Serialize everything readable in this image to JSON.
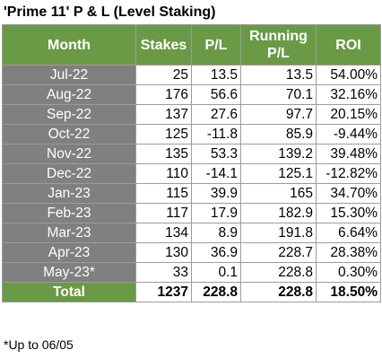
{
  "title": "'Prime 11' P & L (Level Staking)",
  "headers": {
    "month": "Month",
    "stakes": "Stakes",
    "pl": "P/L",
    "running_line1": "Running",
    "running_line2": "P/L",
    "roi": "ROI"
  },
  "rows": [
    {
      "month": "Jul-22",
      "stakes": "25",
      "pl": "13.5",
      "running": "13.5",
      "roi": "54.00%"
    },
    {
      "month": "Aug-22",
      "stakes": "176",
      "pl": "56.6",
      "running": "70.1",
      "roi": "32.16%"
    },
    {
      "month": "Sep-22",
      "stakes": "137",
      "pl": "27.6",
      "running": "97.7",
      "roi": "20.15%"
    },
    {
      "month": "Oct-22",
      "stakes": "125",
      "pl": "-11.8",
      "running": "85.9",
      "roi": "-9.44%"
    },
    {
      "month": "Nov-22",
      "stakes": "135",
      "pl": "53.3",
      "running": "139.2",
      "roi": "39.48%"
    },
    {
      "month": "Dec-22",
      "stakes": "110",
      "pl": "-14.1",
      "running": "125.1",
      "roi": "-12.82%"
    },
    {
      "month": "Jan-23",
      "stakes": "115",
      "pl": "39.9",
      "running": "165",
      "roi": "34.70%"
    },
    {
      "month": "Feb-23",
      "stakes": "117",
      "pl": "17.9",
      "running": "182.9",
      "roi": "15.30%"
    },
    {
      "month": "Mar-23",
      "stakes": "134",
      "pl": "8.9",
      "running": "191.8",
      "roi": "6.64%"
    },
    {
      "month": "Apr-23",
      "stakes": "130",
      "pl": "36.9",
      "running": "228.7",
      "roi": "28.38%"
    },
    {
      "month": "May-23*",
      "stakes": "33",
      "pl": "0.1",
      "running": "228.8",
      "roi": "0.30%"
    }
  ],
  "total": {
    "label": "Total",
    "stakes": "1237",
    "pl": "228.8",
    "running": "228.8",
    "roi": "18.50%"
  },
  "footnote": "*Up to 06/05",
  "colors": {
    "header_green": "#6a9a45",
    "month_gray": "#808080",
    "grid": "#9c9c9c"
  }
}
